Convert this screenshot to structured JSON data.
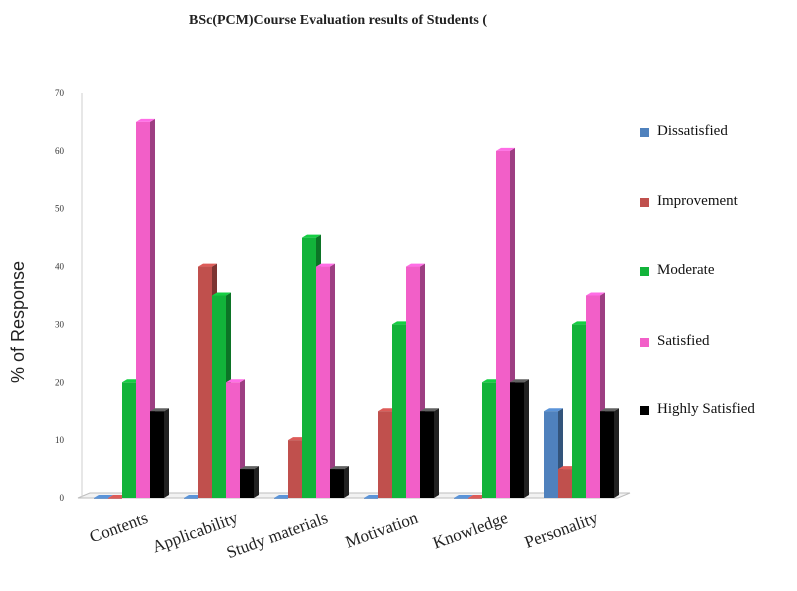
{
  "chart_data": {
    "type": "bar",
    "title": "BSc(PCM)Course Evaluation  results of  Students (",
    "xlabel": "",
    "ylabel": "% of Response",
    "ylim": [
      0,
      70
    ],
    "yticks": [
      0,
      10,
      20,
      30,
      40,
      50,
      60,
      70
    ],
    "categories": [
      "Contents",
      "Applicability",
      "Study materials",
      "Motivation",
      "Knowledge",
      "Personality"
    ],
    "series": [
      {
        "name": "Dissatisfied",
        "color": "#4f81bd",
        "values": [
          0,
          0,
          0,
          0,
          0,
          15
        ]
      },
      {
        "name": "Improvement",
        "color": "#c0504d",
        "values": [
          0,
          40,
          10,
          15,
          0,
          5
        ]
      },
      {
        "name": "Moderate",
        "color": "#12b33a",
        "values": [
          20,
          35,
          45,
          30,
          20,
          30
        ]
      },
      {
        "name": "Satisfied",
        "color": "#f25fc8",
        "values": [
          65,
          20,
          40,
          40,
          60,
          35
        ]
      },
      {
        "name": "Highly Satisfied",
        "color": "#000000",
        "values": [
          15,
          5,
          5,
          15,
          20,
          15
        ]
      }
    ],
    "legend_position": "right",
    "grid": false
  }
}
